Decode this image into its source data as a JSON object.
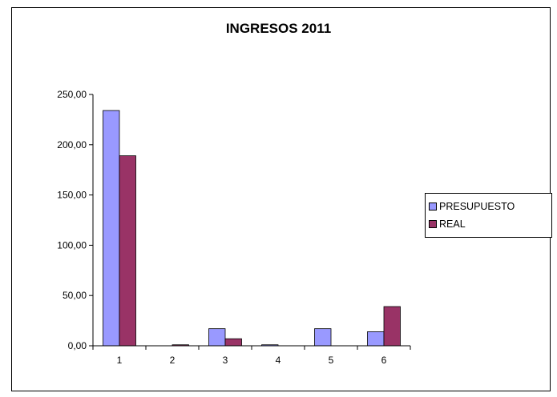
{
  "chart_data": {
    "type": "bar",
    "title": "INGRESOS 2011",
    "categories": [
      "1",
      "2",
      "3",
      "4",
      "5",
      "6"
    ],
    "series": [
      {
        "name": "PRESUPUESTO",
        "color": "#9999ff",
        "values": [
          234,
          0,
          17,
          1,
          17,
          14
        ]
      },
      {
        "name": "REAL",
        "color": "#993366",
        "values": [
          189,
          1,
          7,
          0,
          0,
          39
        ]
      }
    ],
    "ylim": [
      0,
      250
    ],
    "yticks": [
      "0,00",
      "50,00",
      "100,00",
      "150,00",
      "200,00",
      "250,00"
    ],
    "grid": false,
    "legend_position": "right"
  }
}
